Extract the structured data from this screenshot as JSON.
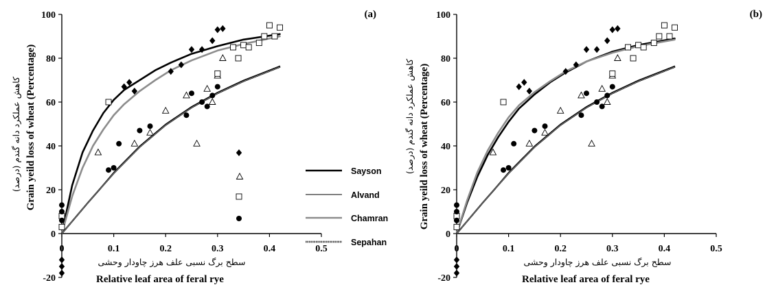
{
  "chart_data": [
    {
      "type": "scatter",
      "panel_label": "(a)",
      "xlabel": "Relative leaf area of feral rye",
      "xlabel_fa": "سطح برگ نسبی علف هرز چاودار وحشی",
      "ylabel": "Grain yeild loss of wheat (Percentage)",
      "ylabel_fa": "کاهش عملکرد دانه گندم (درصد)",
      "xlim": [
        0,
        0.5
      ],
      "ylim": [
        -20,
        100
      ],
      "xticks": [
        "0",
        "0.1",
        "0.2",
        "0.3",
        "0.4",
        "0.5"
      ],
      "yticks": [
        "-20",
        "0",
        "20",
        "40",
        "60",
        "80",
        "100"
      ],
      "series": [
        {
          "name": "Sayson",
          "marker": "diamond-filled",
          "line": "thick-black",
          "points": [
            [
              0,
              6
            ],
            [
              0,
              -12
            ],
            [
              0,
              -15
            ],
            [
              0,
              -18
            ],
            [
              0.12,
              67
            ],
            [
              0.13,
              69
            ],
            [
              0.14,
              65
            ],
            [
              0.21,
              74
            ],
            [
              0.23,
              77
            ],
            [
              0.25,
              84
            ],
            [
              0.27,
              84
            ],
            [
              0.29,
              88
            ],
            [
              0.3,
              93
            ],
            [
              0.31,
              93.5
            ]
          ],
          "fit": [
            [
              0,
              0
            ],
            [
              0.02,
              22
            ],
            [
              0.04,
              37
            ],
            [
              0.06,
              47
            ],
            [
              0.08,
              55
            ],
            [
              0.1,
              61
            ],
            [
              0.12,
              65.5
            ],
            [
              0.15,
              70
            ],
            [
              0.18,
              74.5
            ],
            [
              0.21,
              78
            ],
            [
              0.25,
              82
            ],
            [
              0.3,
              85.5
            ],
            [
              0.35,
              88.5
            ],
            [
              0.42,
              91
            ]
          ]
        },
        {
          "name": "Alvand",
          "marker": "triangle-open",
          "line": "thin-black",
          "points": [
            [
              0.07,
              37
            ],
            [
              0.14,
              41
            ],
            [
              0.17,
              46
            ],
            [
              0.2,
              56
            ],
            [
              0.24,
              63
            ],
            [
              0.26,
              41
            ],
            [
              0.28,
              66
            ],
            [
              0.29,
              60
            ],
            [
              0.3,
              72
            ],
            [
              0.31,
              80
            ]
          ],
          "fit": [
            [
              0,
              0
            ],
            [
              0.05,
              14
            ],
            [
              0.1,
              28
            ],
            [
              0.15,
              40
            ],
            [
              0.2,
              50
            ],
            [
              0.25,
              58
            ],
            [
              0.3,
              64.5
            ],
            [
              0.35,
              70
            ],
            [
              0.42,
              76.5
            ]
          ]
        },
        {
          "name": "Chamran",
          "marker": "square-open",
          "line": "thick-gray",
          "points": [
            [
              0,
              3
            ],
            [
              0,
              8
            ],
            [
              0.09,
              60
            ],
            [
              0.3,
              73
            ],
            [
              0.33,
              85
            ],
            [
              0.34,
              80
            ],
            [
              0.35,
              86
            ],
            [
              0.36,
              85
            ],
            [
              0.38,
              87
            ],
            [
              0.39,
              90
            ],
            [
              0.4,
              95
            ],
            [
              0.41,
              90
            ],
            [
              0.42,
              94
            ]
          ],
          "fit": [
            [
              0,
              0
            ],
            [
              0.02,
              17
            ],
            [
              0.04,
              30
            ],
            [
              0.06,
              40
            ],
            [
              0.08,
              47.5
            ],
            [
              0.1,
              54
            ],
            [
              0.12,
              59
            ],
            [
              0.15,
              65
            ],
            [
              0.18,
              70
            ],
            [
              0.21,
              74.5
            ],
            [
              0.25,
              79
            ],
            [
              0.3,
              83.5
            ],
            [
              0.35,
              86.5
            ],
            [
              0.42,
              90
            ]
          ]
        },
        {
          "name": "Sepahan",
          "marker": "circle-filled",
          "line": "dashed",
          "points": [
            [
              0,
              13
            ],
            [
              0,
              10
            ],
            [
              0,
              6
            ],
            [
              0.09,
              29
            ],
            [
              0.1,
              30
            ],
            [
              0.11,
              41
            ],
            [
              0.15,
              47
            ],
            [
              0.17,
              49
            ],
            [
              0.24,
              54
            ],
            [
              0.25,
              64
            ],
            [
              0.27,
              60
            ],
            [
              0.28,
              58
            ],
            [
              0.29,
              63
            ],
            [
              0.3,
              67
            ]
          ],
          "fit": [
            [
              0,
              0
            ],
            [
              0.05,
              14
            ],
            [
              0.1,
              27.5
            ],
            [
              0.15,
              39.5
            ],
            [
              0.2,
              49.5
            ],
            [
              0.25,
              57.5
            ],
            [
              0.3,
              64
            ],
            [
              0.35,
              69.5
            ],
            [
              0.42,
              76
            ]
          ]
        }
      ]
    },
    {
      "type": "scatter",
      "panel_label": "(b)",
      "xlabel": "Relative leaf area of feral rye",
      "xlabel_fa": "سطح برگ نسبی علف هرز چاودار وحشی",
      "ylabel": "Grain yeild loss of wheat (Percentage)",
      "ylabel_fa": "کاهش عملکرد دانه گندم (درصد)",
      "xlim": [
        0,
        0.5
      ],
      "ylim": [
        -20,
        100
      ],
      "xticks": [
        "0",
        "0.1",
        "0.2",
        "0.3",
        "0.4",
        "0.5"
      ],
      "yticks": [
        "-20",
        "0",
        "20",
        "40",
        "60",
        "80",
        "100"
      ],
      "series": [
        {
          "name": "Sayson",
          "marker": "diamond-filled",
          "line": "thick-black",
          "points": [
            [
              0,
              6
            ],
            [
              0,
              -12
            ],
            [
              0,
              -15
            ],
            [
              0,
              -18
            ],
            [
              0.12,
              67
            ],
            [
              0.13,
              69
            ],
            [
              0.14,
              65
            ],
            [
              0.21,
              74
            ],
            [
              0.23,
              77
            ],
            [
              0.25,
              84
            ],
            [
              0.27,
              84
            ],
            [
              0.29,
              88
            ],
            [
              0.3,
              93
            ],
            [
              0.31,
              93.5
            ]
          ],
          "fit": [
            [
              0,
              0
            ],
            [
              0.02,
              14
            ],
            [
              0.04,
              26
            ],
            [
              0.06,
              36
            ],
            [
              0.08,
              44
            ],
            [
              0.1,
              51
            ],
            [
              0.12,
              57
            ],
            [
              0.15,
              63.5
            ],
            [
              0.18,
              69
            ],
            [
              0.21,
              73.5
            ],
            [
              0.25,
              78.5
            ],
            [
              0.3,
              83
            ],
            [
              0.35,
              86
            ],
            [
              0.42,
              89
            ]
          ]
        },
        {
          "name": "Alvand",
          "marker": "triangle-open",
          "line": "thin-black",
          "points": [
            [
              0.07,
              37
            ],
            [
              0.14,
              41
            ],
            [
              0.17,
              46
            ],
            [
              0.2,
              56
            ],
            [
              0.24,
              63
            ],
            [
              0.26,
              41
            ],
            [
              0.28,
              66
            ],
            [
              0.29,
              60
            ],
            [
              0.3,
              72
            ],
            [
              0.31,
              80
            ]
          ],
          "fit": [
            [
              0,
              0
            ],
            [
              0.05,
              14
            ],
            [
              0.1,
              28
            ],
            [
              0.15,
              40
            ],
            [
              0.2,
              50
            ],
            [
              0.25,
              58
            ],
            [
              0.3,
              64.5
            ],
            [
              0.35,
              70
            ],
            [
              0.42,
              76.5
            ]
          ]
        },
        {
          "name": "Chamran",
          "marker": "square-open",
          "line": "thick-gray",
          "points": [
            [
              0,
              3
            ],
            [
              0,
              8
            ],
            [
              0.09,
              60
            ],
            [
              0.3,
              73
            ],
            [
              0.33,
              85
            ],
            [
              0.34,
              80
            ],
            [
              0.35,
              86
            ],
            [
              0.36,
              85
            ],
            [
              0.38,
              87
            ],
            [
              0.39,
              90
            ],
            [
              0.4,
              95
            ],
            [
              0.41,
              90
            ],
            [
              0.42,
              94
            ]
          ],
          "fit": [
            [
              0,
              0
            ],
            [
              0.02,
              15
            ],
            [
              0.04,
              28
            ],
            [
              0.06,
              38
            ],
            [
              0.08,
              46
            ],
            [
              0.1,
              53
            ],
            [
              0.12,
              58.5
            ],
            [
              0.15,
              64.5
            ],
            [
              0.18,
              69.5
            ],
            [
              0.21,
              74
            ],
            [
              0.25,
              78.5
            ],
            [
              0.3,
              82.5
            ],
            [
              0.35,
              85.5
            ],
            [
              0.42,
              88.5
            ]
          ]
        },
        {
          "name": "Sepahan",
          "marker": "circle-filled",
          "line": "dashed",
          "points": [
            [
              0,
              13
            ],
            [
              0,
              10
            ],
            [
              0,
              6
            ],
            [
              0.09,
              29
            ],
            [
              0.1,
              30
            ],
            [
              0.11,
              41
            ],
            [
              0.15,
              47
            ],
            [
              0.17,
              49
            ],
            [
              0.24,
              54
            ],
            [
              0.25,
              64
            ],
            [
              0.27,
              60
            ],
            [
              0.28,
              58
            ],
            [
              0.29,
              63
            ],
            [
              0.3,
              67
            ]
          ],
          "fit": [
            [
              0,
              0
            ],
            [
              0.05,
              14
            ],
            [
              0.1,
              27.5
            ],
            [
              0.15,
              39.5
            ],
            [
              0.2,
              49.5
            ],
            [
              0.25,
              57.5
            ],
            [
              0.3,
              64
            ],
            [
              0.35,
              69.5
            ],
            [
              0.42,
              76
            ]
          ]
        }
      ]
    }
  ],
  "legend": {
    "placement": "center",
    "entries": [
      "Sayson",
      "Alvand",
      "Chamran",
      "Sepahan"
    ]
  }
}
